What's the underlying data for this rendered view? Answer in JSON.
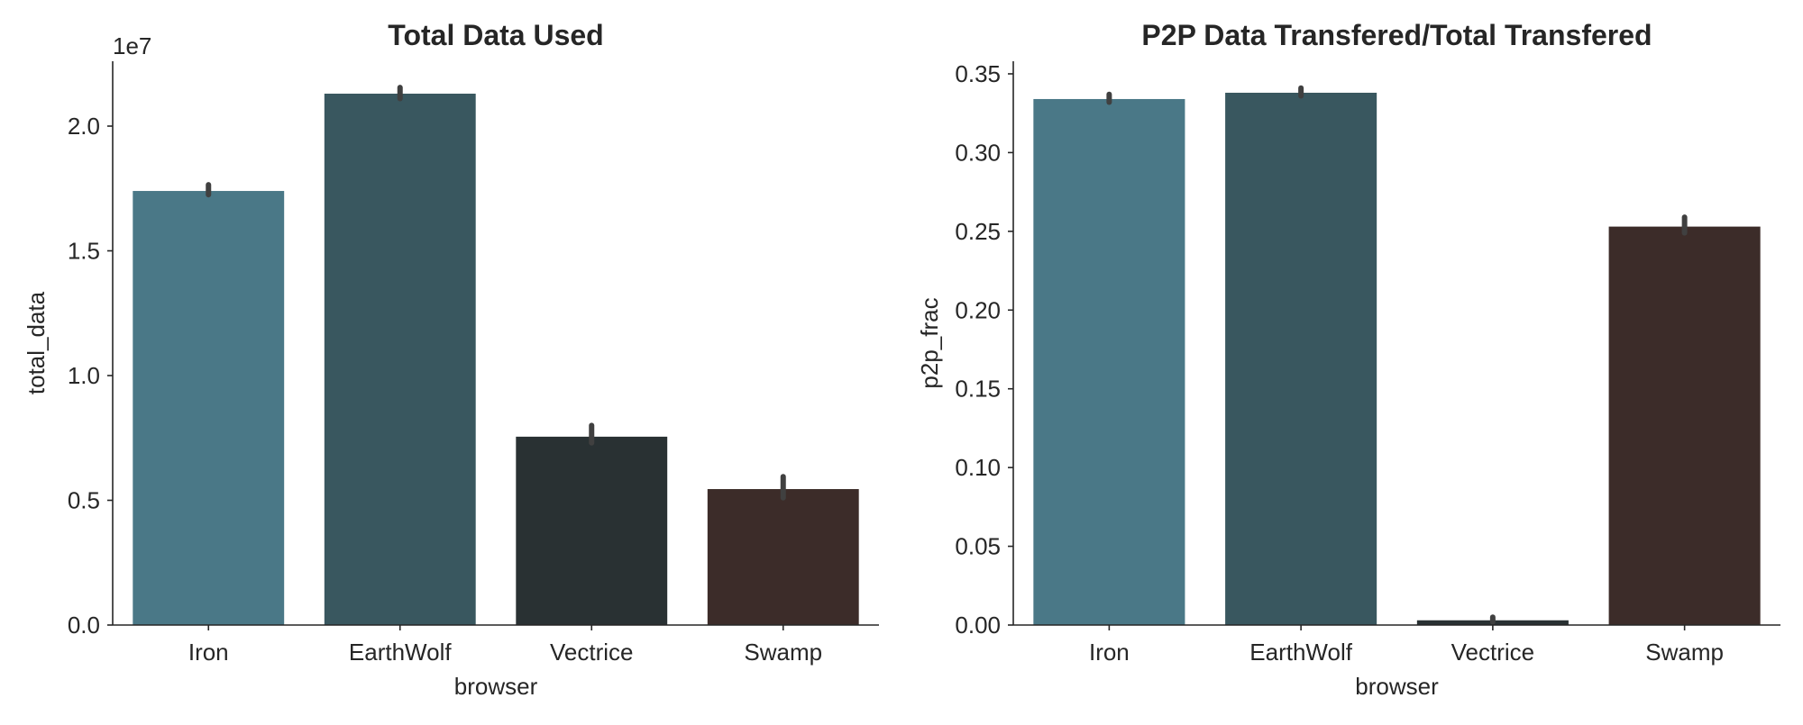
{
  "chart_data": [
    {
      "type": "bar",
      "title": "Total Data Used",
      "xlabel": "browser",
      "ylabel": "total_data",
      "y_offset_label": "1e7",
      "categories": [
        "Iron",
        "EarthWolf",
        "Vectrice",
        "Swamp"
      ],
      "values": [
        17400000,
        21300000,
        7550000,
        5450000
      ],
      "errors": [
        [
          17250000,
          17650000
        ],
        [
          21100000,
          21550000
        ],
        [
          7300000,
          8000000
        ],
        [
          5100000,
          5950000
        ]
      ],
      "colors": [
        "#4a7887",
        "#39575f",
        "#293133",
        "#3c2c29"
      ],
      "ylim": [
        0,
        22600000
      ],
      "yticks": [
        0,
        5000000,
        10000000,
        15000000,
        20000000
      ],
      "ytick_labels": [
        "0.0",
        "0.5",
        "1.0",
        "1.5",
        "2.0"
      ],
      "grid": false
    },
    {
      "type": "bar",
      "title": "P2P Data Transfered/Total Transfered",
      "xlabel": "browser",
      "ylabel": "p2p_frac",
      "categories": [
        "Iron",
        "EarthWolf",
        "Vectrice",
        "Swamp"
      ],
      "values": [
        0.334,
        0.338,
        0.003,
        0.253
      ],
      "errors": [
        [
          0.332,
          0.337
        ],
        [
          0.336,
          0.341
        ],
        [
          0.002,
          0.005
        ],
        [
          0.249,
          0.259
        ]
      ],
      "colors": [
        "#4a7887",
        "#39575f",
        "#293133",
        "#3c2c29"
      ],
      "ylim": [
        0,
        0.358
      ],
      "yticks": [
        0,
        0.05,
        0.1,
        0.15,
        0.2,
        0.25,
        0.3,
        0.35
      ],
      "ytick_labels": [
        "0.00",
        "0.05",
        "0.10",
        "0.15",
        "0.20",
        "0.25",
        "0.30",
        "0.35"
      ],
      "grid": false
    }
  ]
}
